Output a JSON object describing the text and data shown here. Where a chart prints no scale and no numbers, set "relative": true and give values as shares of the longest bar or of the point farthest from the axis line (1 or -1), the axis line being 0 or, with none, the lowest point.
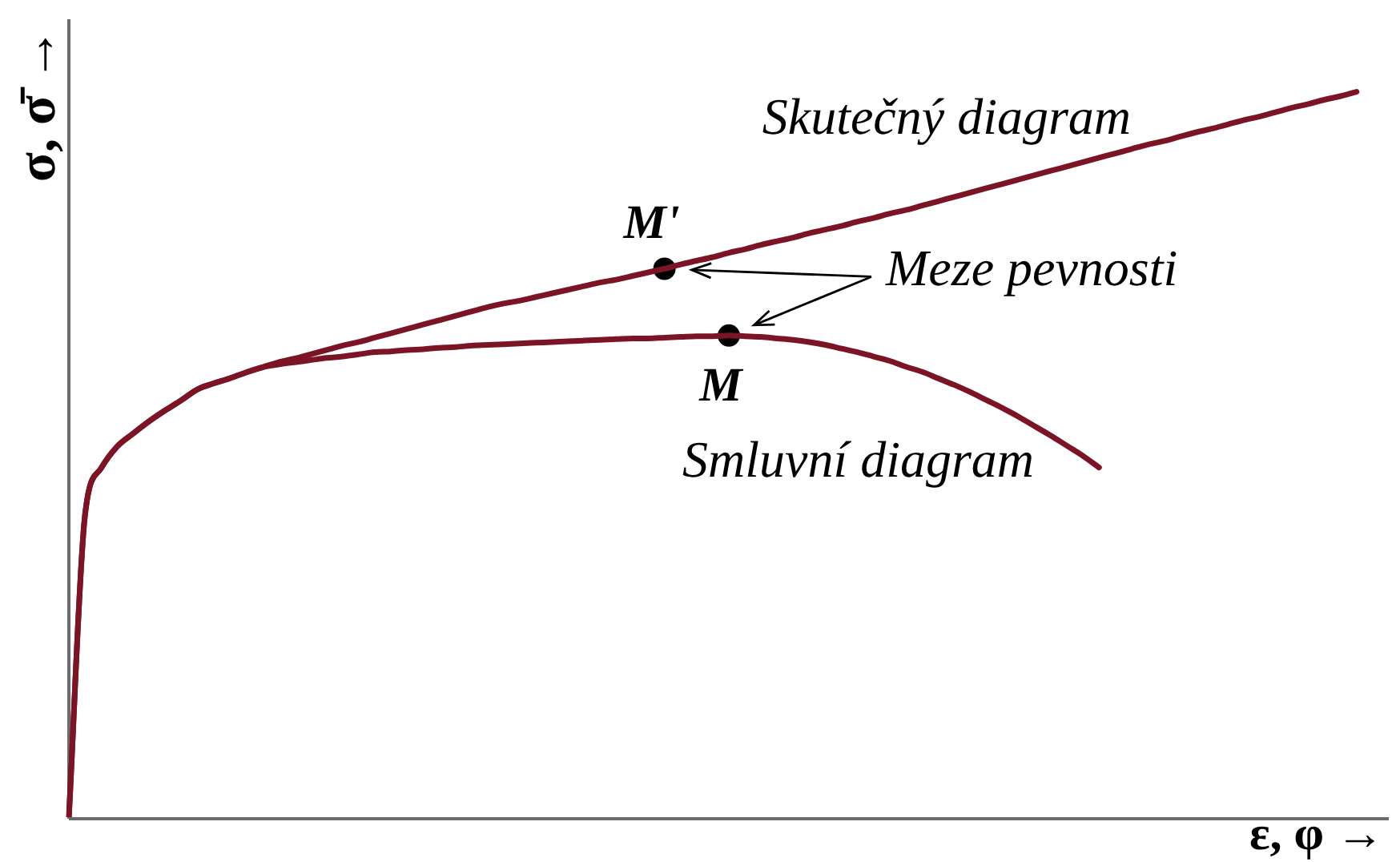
{
  "chart_data": {
    "type": "line",
    "xlabel": "ε, φ →",
    "ylabel": "σ, σ̄ →",
    "relative": true,
    "marker": "none",
    "categories": [
      null,
      null,
      null,
      null,
      null,
      null,
      null,
      null,
      null,
      null,
      null,
      null,
      null,
      null,
      null,
      null,
      null,
      null,
      null,
      null,
      null,
      null,
      null,
      null,
      null,
      null,
      null,
      null,
      null,
      null,
      null,
      null,
      null,
      null,
      null,
      null,
      null,
      null,
      null,
      null,
      null,
      null,
      null,
      null,
      null,
      null,
      null,
      null,
      null,
      null,
      null,
      null,
      null,
      null,
      null,
      null,
      null,
      null,
      null,
      null,
      null,
      null,
      null,
      null,
      null,
      null,
      null,
      null,
      null,
      null,
      null,
      null,
      null,
      null,
      null,
      null,
      null,
      null,
      null,
      null,
      null,
      null,
      null
    ],
    "series": [
      {
        "name": "Skutečný diagram",
        "color": "#7b1526",
        "values": [
          0,
          0.416,
          0.481,
          0.511,
          0.529,
          0.546,
          0.561,
          0.575,
          0.59,
          0.598,
          0.605,
          0.613,
          0.62,
          0.627,
          0.632,
          0.638,
          0.644,
          0.65,
          0.655,
          0.661,
          0.667,
          0.673,
          0.679,
          0.685,
          0.691,
          0.697,
          0.703,
          0.708,
          0.712,
          0.717,
          0.722,
          0.727,
          0.732,
          0.737,
          0.741,
          0.746,
          0.751,
          0.756,
          0.762,
          0.767,
          0.772,
          0.778,
          0.783,
          0.789,
          0.794,
          0.799,
          0.805,
          0.81,
          0.815,
          0.821,
          0.826,
          0.832,
          0.837,
          0.843,
          0.849,
          0.855,
          0.861,
          0.867,
          0.873,
          0.879,
          0.885,
          0.891,
          0.897,
          0.903,
          0.909,
          0.915,
          0.921,
          0.927,
          0.932,
          0.938,
          0.944,
          0.949,
          0.955,
          0.961,
          0.966,
          0.972,
          0.978,
          0.983,
          0.989,
          0.994,
          1,
          null,
          null
        ]
      },
      {
        "name": "Smluvní diagram",
        "color": "#7b1526",
        "values": [
          0,
          0.416,
          0.481,
          0.511,
          0.529,
          0.546,
          0.561,
          0.575,
          0.59,
          0.598,
          0.605,
          0.613,
          0.62,
          0.624,
          0.627,
          0.63,
          0.633,
          0.635,
          0.638,
          0.641,
          0.642,
          0.644,
          0.645,
          0.647,
          0.648,
          0.65,
          0.651,
          0.652,
          0.653,
          0.654,
          0.655,
          0.656,
          0.657,
          0.658,
          0.659,
          0.66,
          0.66,
          0.661,
          0.662,
          0.663,
          0.663,
          0.664,
          0.663,
          0.662,
          0.66,
          0.658,
          0.655,
          0.651,
          0.646,
          0.641,
          0.635,
          0.629,
          0.621,
          0.614,
          0.605,
          0.596,
          0.586,
          0.575,
          0.564,
          0.552,
          0.539,
          0.526,
          0.512,
          0.498,
          0.482,
          null,
          null,
          null,
          null,
          null,
          null,
          null,
          null,
          null,
          null,
          null,
          null,
          null,
          null,
          null,
          null,
          null,
          null
        ]
      },
      {
        "name": "Meze pevnosti",
        "marker": "circle",
        "color": "#000000",
        "values": [
          null,
          null,
          null,
          null,
          null,
          null,
          null,
          null,
          null,
          null,
          null,
          null,
          null,
          null,
          null,
          null,
          null,
          null,
          null,
          null,
          null,
          null,
          null,
          null,
          null,
          null,
          null,
          null,
          null,
          null,
          null,
          null,
          null,
          null,
          null,
          null,
          null,
          0.756,
          null,
          null,
          null,
          0.664,
          null,
          null,
          null,
          null,
          null,
          null,
          null,
          null,
          null,
          null,
          null,
          null,
          null,
          null,
          null,
          null,
          null,
          null,
          null,
          null,
          null,
          null,
          null,
          null,
          null,
          null,
          null,
          null,
          null,
          null,
          null,
          null,
          null,
          null,
          null,
          null,
          null,
          null,
          null,
          null,
          null
        ]
      }
    ],
    "annotations": [
      "M'",
      "M"
    ]
  }
}
